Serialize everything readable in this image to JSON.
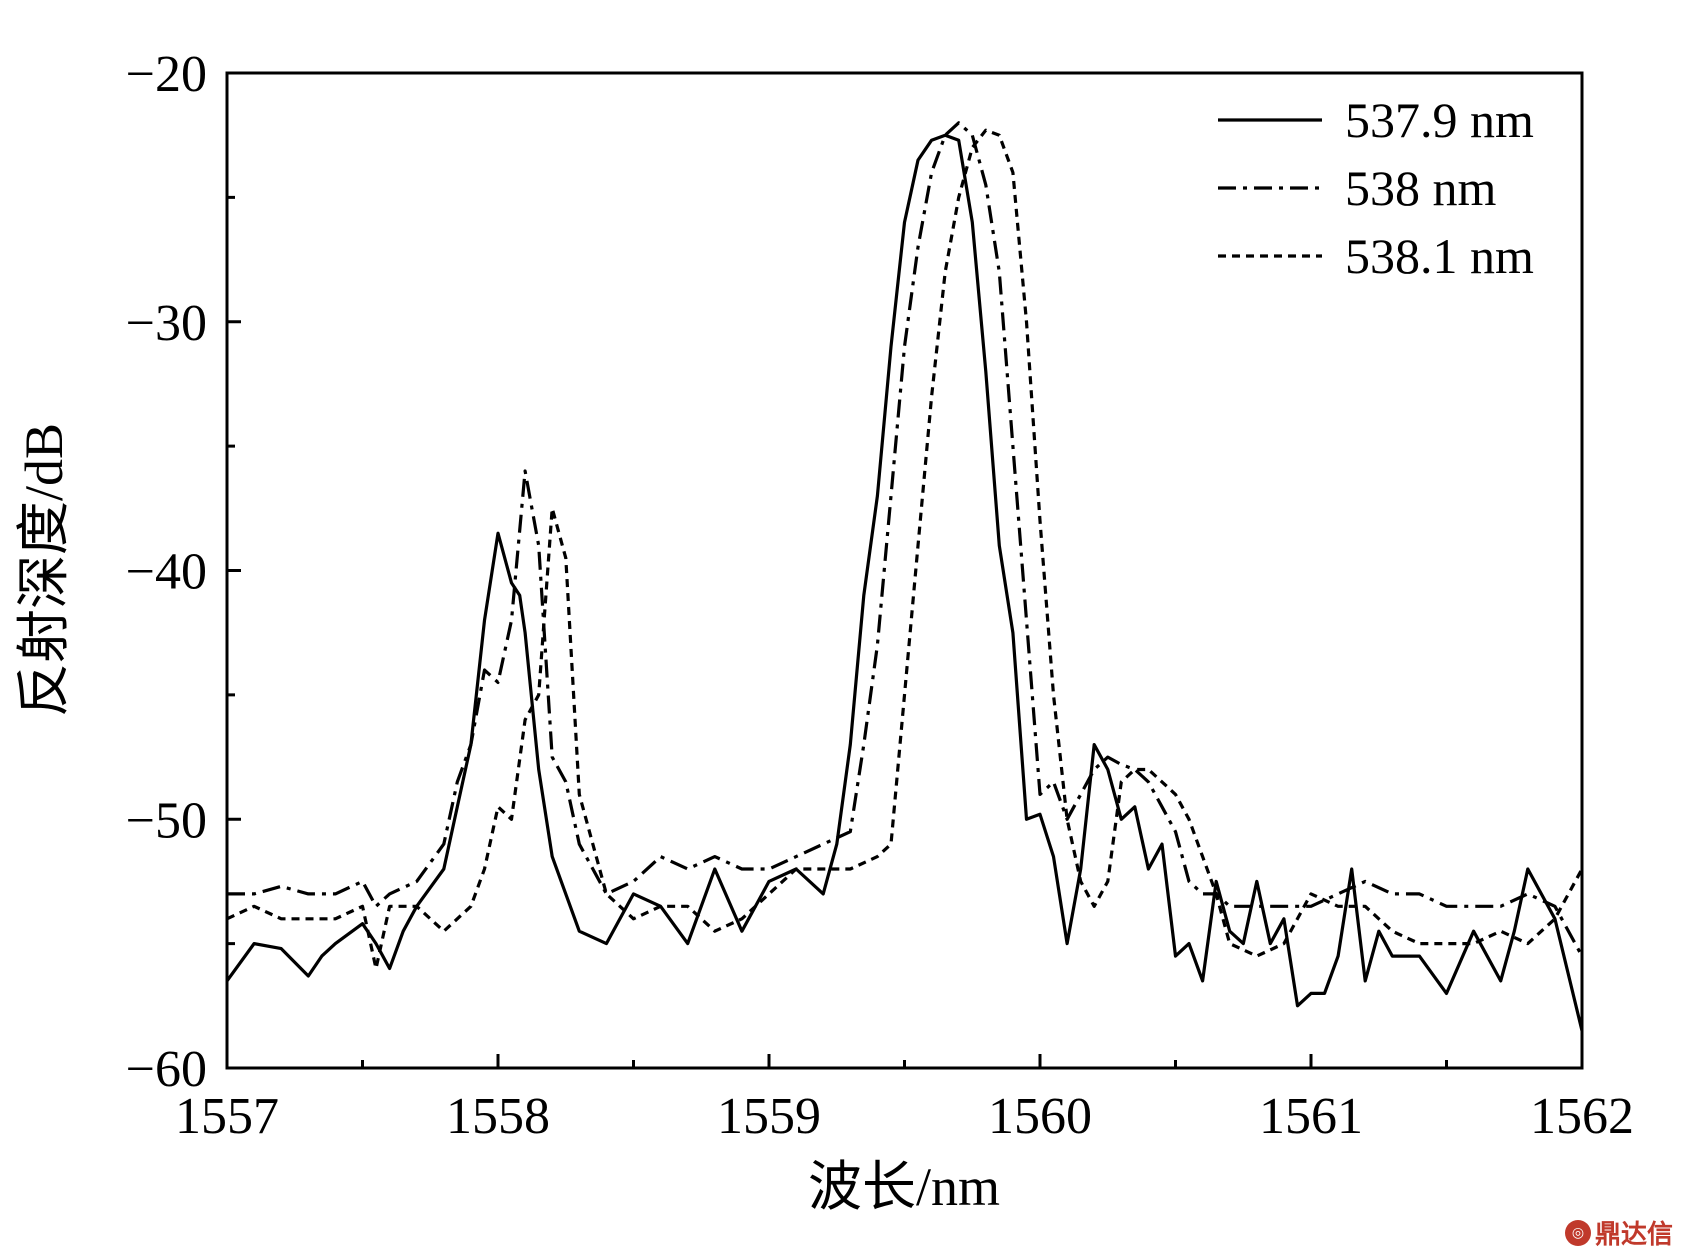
{
  "chart_data": {
    "type": "line",
    "xlabel": "波长/nm",
    "ylabel": "反射深度/dB",
    "xlim": [
      1557,
      1562
    ],
    "ylim": [
      -60,
      -20
    ],
    "xticks": [
      1557,
      1558,
      1559,
      1560,
      1561,
      1562
    ],
    "yticks": [
      -20,
      -30,
      -40,
      -50,
      -60
    ],
    "xtick_labels": [
      "1557",
      "1558",
      "1559",
      "1560",
      "1561",
      "1562"
    ],
    "ytick_labels": [
      "−20",
      "−30",
      "−40",
      "−50",
      "−60"
    ],
    "legend_position": "top-right",
    "grid": false,
    "series": [
      {
        "name": "537.9 nm",
        "dash": "solid",
        "x": [
          1557.0,
          1557.1,
          1557.2,
          1557.3,
          1557.35,
          1557.4,
          1557.5,
          1557.55,
          1557.6,
          1557.65,
          1557.7,
          1557.8,
          1557.85,
          1557.9,
          1557.95,
          1558.0,
          1558.05,
          1558.08,
          1558.1,
          1558.15,
          1558.2,
          1558.3,
          1558.4,
          1558.5,
          1558.6,
          1558.7,
          1558.8,
          1558.9,
          1559.0,
          1559.1,
          1559.2,
          1559.25,
          1559.3,
          1559.35,
          1559.4,
          1559.45,
          1559.5,
          1559.55,
          1559.6,
          1559.65,
          1559.7,
          1559.75,
          1559.8,
          1559.85,
          1559.9,
          1559.95,
          1560.0,
          1560.05,
          1560.1,
          1560.15,
          1560.2,
          1560.25,
          1560.3,
          1560.35,
          1560.4,
          1560.45,
          1560.5,
          1560.55,
          1560.6,
          1560.65,
          1560.7,
          1560.75,
          1560.8,
          1560.85,
          1560.9,
          1560.95,
          1561.0,
          1561.05,
          1561.1,
          1561.15,
          1561.2,
          1561.25,
          1561.3,
          1561.4,
          1561.5,
          1561.6,
          1561.7,
          1561.75,
          1561.8,
          1561.9,
          1562.0
        ],
        "y": [
          -56.5,
          -55.0,
          -55.2,
          -56.3,
          -55.5,
          -55.0,
          -54.2,
          -55.0,
          -56.0,
          -54.5,
          -53.5,
          -52.0,
          -49.5,
          -47.0,
          -42.0,
          -38.5,
          -40.5,
          -41.0,
          -42.5,
          -48.0,
          -51.5,
          -54.5,
          -55.0,
          -53.0,
          -53.5,
          -55.0,
          -52.0,
          -54.5,
          -52.5,
          -52.0,
          -53.0,
          -51.0,
          -47.0,
          -41.0,
          -37.0,
          -31.0,
          -26.0,
          -23.5,
          -22.7,
          -22.5,
          -22.7,
          -26.0,
          -32.0,
          -39.0,
          -42.5,
          -50.0,
          -49.8,
          -51.5,
          -55.0,
          -52.0,
          -47.0,
          -48.0,
          -50.0,
          -49.5,
          -52.0,
          -51.0,
          -55.5,
          -55.0,
          -56.5,
          -52.5,
          -54.5,
          -55.0,
          -52.5,
          -55.0,
          -54.0,
          -57.5,
          -57.0,
          -57.0,
          -55.5,
          -52.0,
          -56.5,
          -54.5,
          -55.5,
          -55.5,
          -57.0,
          -54.5,
          -56.5,
          -54.5,
          -52.0,
          -54.0,
          -58.5
        ]
      },
      {
        "name": "538 nm",
        "dash": "dash-dot",
        "x": [
          1557.0,
          1557.1,
          1557.2,
          1557.3,
          1557.4,
          1557.5,
          1557.55,
          1557.6,
          1557.7,
          1557.8,
          1557.85,
          1557.9,
          1557.95,
          1558.0,
          1558.05,
          1558.1,
          1558.15,
          1558.2,
          1558.25,
          1558.3,
          1558.4,
          1558.5,
          1558.6,
          1558.7,
          1558.8,
          1558.9,
          1559.0,
          1559.1,
          1559.2,
          1559.3,
          1559.35,
          1559.4,
          1559.45,
          1559.5,
          1559.55,
          1559.6,
          1559.65,
          1559.7,
          1559.75,
          1559.8,
          1559.85,
          1559.9,
          1559.95,
          1560.0,
          1560.05,
          1560.1,
          1560.15,
          1560.2,
          1560.25,
          1560.3,
          1560.35,
          1560.4,
          1560.45,
          1560.5,
          1560.55,
          1560.6,
          1560.65,
          1560.7,
          1560.8,
          1560.9,
          1561.0,
          1561.1,
          1561.2,
          1561.3,
          1561.4,
          1561.5,
          1561.6,
          1561.7,
          1561.8,
          1561.9,
          1562.0
        ],
        "y": [
          -53.0,
          -53.0,
          -52.7,
          -53.0,
          -53.0,
          -52.5,
          -53.5,
          -53.0,
          -52.5,
          -51.0,
          -48.5,
          -47.0,
          -44.0,
          -44.5,
          -42.0,
          -36.0,
          -39.0,
          -47.5,
          -48.5,
          -51.0,
          -53.0,
          -52.5,
          -51.5,
          -52.0,
          -51.5,
          -52.0,
          -52.0,
          -51.5,
          -51.0,
          -50.5,
          -47.0,
          -43.0,
          -37.0,
          -31.0,
          -27.0,
          -24.0,
          -22.5,
          -22.0,
          -22.5,
          -24.5,
          -28.0,
          -35.0,
          -42.0,
          -49.0,
          -48.5,
          -50.0,
          -49.0,
          -48.0,
          -47.5,
          -47.8,
          -48.0,
          -48.5,
          -49.5,
          -50.5,
          -52.5,
          -53.0,
          -53.0,
          -53.5,
          -53.5,
          -53.5,
          -53.5,
          -53.0,
          -52.5,
          -53.0,
          -53.0,
          -53.5,
          -53.5,
          -53.5,
          -53.0,
          -53.5,
          -55.5
        ]
      },
      {
        "name": "538.1 nm",
        "dash": "dashed",
        "x": [
          1557.0,
          1557.1,
          1557.2,
          1557.3,
          1557.4,
          1557.5,
          1557.55,
          1557.6,
          1557.7,
          1557.8,
          1557.9,
          1557.95,
          1558.0,
          1558.05,
          1558.1,
          1558.15,
          1558.2,
          1558.25,
          1558.3,
          1558.4,
          1558.5,
          1558.6,
          1558.7,
          1558.8,
          1558.9,
          1559.0,
          1559.1,
          1559.2,
          1559.3,
          1559.4,
          1559.45,
          1559.5,
          1559.55,
          1559.6,
          1559.65,
          1559.7,
          1559.75,
          1559.8,
          1559.85,
          1559.9,
          1559.95,
          1560.0,
          1560.05,
          1560.1,
          1560.15,
          1560.2,
          1560.25,
          1560.3,
          1560.35,
          1560.4,
          1560.45,
          1560.5,
          1560.55,
          1560.6,
          1560.65,
          1560.7,
          1560.8,
          1560.9,
          1561.0,
          1561.1,
          1561.2,
          1561.3,
          1561.4,
          1561.5,
          1561.6,
          1561.7,
          1561.8,
          1561.9,
          1562.0
        ],
        "y": [
          -54.0,
          -53.5,
          -54.0,
          -54.0,
          -54.0,
          -53.5,
          -56.0,
          -53.5,
          -53.5,
          -54.5,
          -53.5,
          -52.0,
          -49.5,
          -50.0,
          -46.0,
          -45.0,
          -37.5,
          -39.5,
          -49.0,
          -53.0,
          -54.0,
          -53.5,
          -53.5,
          -54.5,
          -54.0,
          -53.0,
          -52.0,
          -52.0,
          -52.0,
          -51.5,
          -51.0,
          -45.0,
          -39.0,
          -33.0,
          -28.0,
          -25.0,
          -23.0,
          -22.3,
          -22.5,
          -24.0,
          -30.0,
          -38.0,
          -45.0,
          -50.0,
          -52.5,
          -53.5,
          -52.5,
          -48.5,
          -48.0,
          -48.0,
          -48.5,
          -49.0,
          -50.0,
          -51.5,
          -53.0,
          -55.0,
          -55.5,
          -55.0,
          -53.0,
          -53.5,
          -53.5,
          -54.5,
          -55.0,
          -55.0,
          -55.0,
          -54.5,
          -55.0,
          -54.0,
          -52.0
        ]
      }
    ]
  },
  "watermark": "鼎达信"
}
